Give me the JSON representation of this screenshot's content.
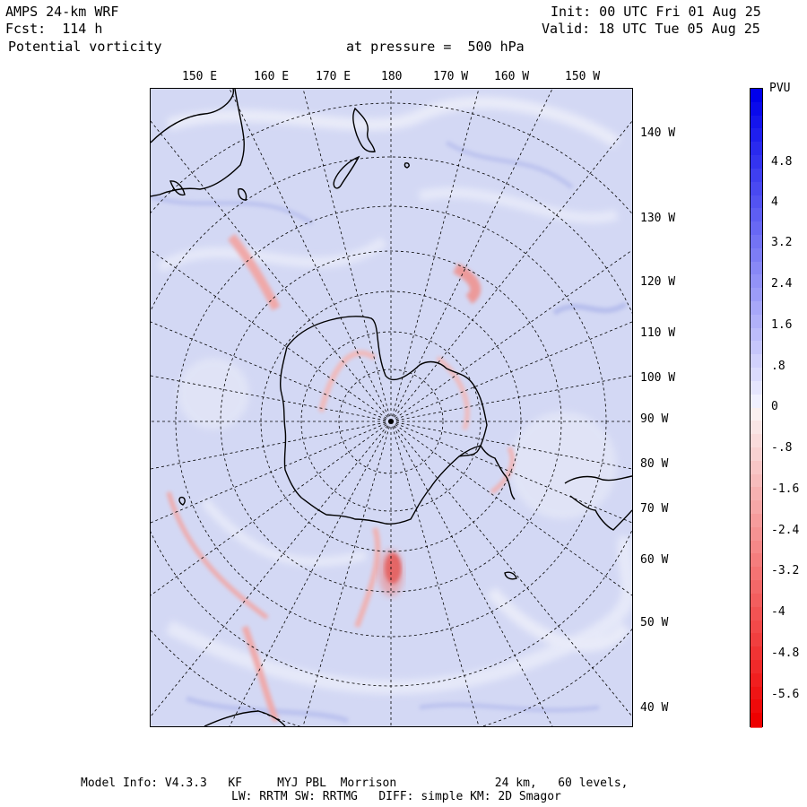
{
  "header": {
    "model": "AMPS 24-km WRF",
    "forecast": "Fcst:  114 h",
    "field": "Potential vorticity",
    "init": "Init: 00 UTC Fri 01 Aug 25",
    "valid": "Valid: 18 UTC Tue 05 Aug 25",
    "level": "at pressure =  500 hPa"
  },
  "map": {
    "top_longitudes": [
      "150 E",
      "160 E",
      "170 E",
      "180",
      "170 W",
      "160 W",
      "150 W"
    ],
    "right_longitudes": [
      "140 W",
      "130 W",
      "120 W",
      "110 W",
      "100 W",
      "90 W",
      "80 W",
      "70 W",
      "60 W",
      "50 W",
      "40 W"
    ],
    "colors": {
      "background": "#d6daf5",
      "positive": "#e85050",
      "coast": "#000000"
    }
  },
  "colorbar": {
    "unit": "PVU",
    "labels": [
      "4.8",
      "4",
      "3.2",
      "2.4",
      "1.6",
      ".8",
      "0",
      "-.8",
      "-1.6",
      "-2.4",
      "-3.2",
      "-4",
      "-4.8",
      "-5.6"
    ],
    "top_color": "#0000ee",
    "bottom_color": "#ee0000"
  },
  "footer": {
    "line1": "Model Info: V4.3.3   KF     MYJ PBL  Morrison              24 km,   60 levels,",
    "line2": "LW: RRTM SW: RRTMG   DIFF: simple KM: 2D Smagor"
  }
}
